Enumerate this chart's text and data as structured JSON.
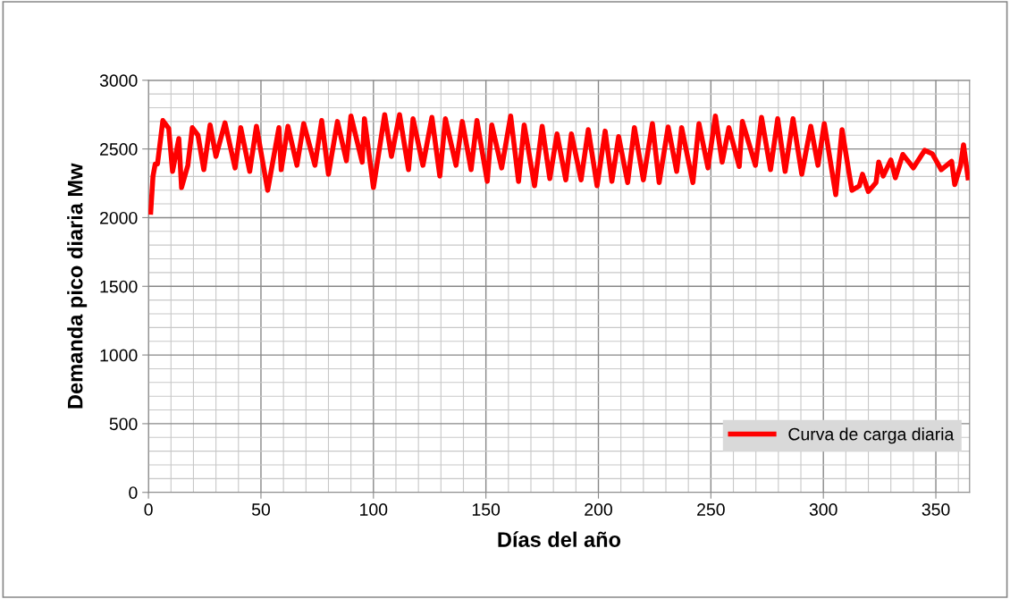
{
  "chart_data": {
    "type": "line",
    "xlabel": "Días del año",
    "ylabel": "Demanda pico diaria Mw",
    "xlim": [
      0,
      365
    ],
    "xticks": [
      0,
      50,
      100,
      150,
      200,
      250,
      300,
      350
    ],
    "ylim": [
      0,
      3000
    ],
    "yticks": [
      0,
      500,
      1000,
      1500,
      2000,
      2500,
      3000
    ],
    "grid": true,
    "legend": "bottom right",
    "marker": "none",
    "line_style": "solid",
    "series": [
      {
        "name": "Curva de carga diaria",
        "color": "#ff0000",
        "x": [
          1,
          2,
          3,
          4,
          6.4,
          9,
          10.7,
          13.5,
          14.7,
          17.5,
          19.5,
          22,
          24.6,
          27.4,
          30,
          34,
          38.5,
          41,
          45,
          48,
          53,
          58,
          59,
          62,
          66,
          69,
          74,
          77,
          80,
          84,
          88,
          90,
          95,
          96,
          100,
          105,
          108,
          111.6,
          115.6,
          117.6,
          122,
          126,
          129.5,
          132,
          136.7,
          139.5,
          143.4,
          146,
          150.6,
          152.6,
          157,
          161,
          164.5,
          167,
          171.6,
          175,
          178.4,
          181.6,
          185.5,
          188,
          192.3,
          195.5,
          199.4,
          203,
          206,
          209,
          213,
          216,
          220,
          224,
          227,
          231,
          234.8,
          237,
          242,
          244.7,
          248.7,
          252,
          255,
          258,
          262.6,
          264,
          269.8,
          272.5,
          276.5,
          279.7,
          283,
          286.5,
          290.4,
          294.4,
          297.6,
          300.4,
          305.5,
          308.3,
          311.5,
          312.7,
          316,
          317.4,
          320,
          323.4,
          324.6,
          326.6,
          330,
          332,
          335.3,
          340,
          345,
          348.4,
          352.4,
          357,
          358.4,
          361,
          362.3,
          364.3
        ],
        "values": [
          2040,
          2300,
          2390,
          2390,
          2707,
          2650,
          2336,
          2575,
          2219,
          2381,
          2655,
          2600,
          2349,
          2675,
          2446,
          2690,
          2362,
          2655,
          2336,
          2665,
          2199,
          2655,
          2349,
          2665,
          2381,
          2685,
          2381,
          2707,
          2316,
          2700,
          2414,
          2740,
          2404,
          2720,
          2219,
          2750,
          2446,
          2750,
          2349,
          2720,
          2381,
          2730,
          2303,
          2720,
          2381,
          2700,
          2349,
          2707,
          2264,
          2675,
          2362,
          2740,
          2264,
          2675,
          2232,
          2665,
          2284,
          2609,
          2275,
          2609,
          2275,
          2640,
          2232,
          2630,
          2264,
          2590,
          2255,
          2655,
          2275,
          2685,
          2255,
          2660,
          2336,
          2655,
          2255,
          2685,
          2362,
          2740,
          2404,
          2655,
          2372,
          2700,
          2381,
          2730,
          2349,
          2720,
          2336,
          2720,
          2316,
          2665,
          2381,
          2685,
          2167,
          2641,
          2316,
          2199,
          2232,
          2316,
          2190,
          2255,
          2404,
          2303,
          2420,
          2290,
          2460,
          2362,
          2490,
          2465,
          2349,
          2410,
          2240,
          2381,
          2530,
          2290
        ]
      }
    ]
  }
}
